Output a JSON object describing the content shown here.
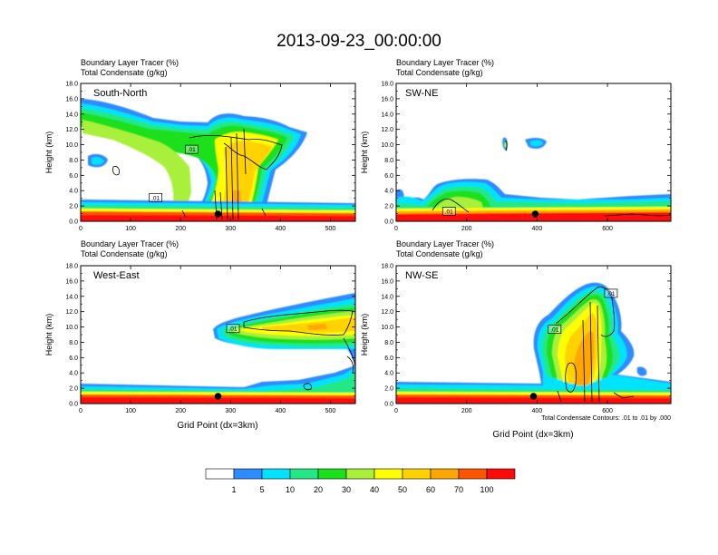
{
  "figure": {
    "title": "2013-09-23_00:00:00",
    "note": "Total Condensate Contours: .01 to .01 by .000"
  },
  "chart_data": [
    {
      "type": "heatmap",
      "panel_label": "South-North",
      "title_line1": "Boundary Layer Tracer   (%)",
      "title_line2": "Total Condensate   (g/kg)",
      "xlabel": "",
      "ylabel": "Height (km)",
      "xlim": [
        0,
        550
      ],
      "ylim": [
        0,
        18
      ],
      "xticks": [
        0,
        100,
        200,
        300,
        400,
        500
      ],
      "yticks": [
        0.0,
        2.0,
        4.0,
        6.0,
        8.0,
        10.0,
        12.0,
        14.0,
        16.0,
        18.0
      ],
      "marker_x": 275,
      "contour_labels": [
        {
          "x": 222,
          "y": 9.4,
          "text": ".01"
        },
        {
          "x": 150,
          "y": 3.1,
          "text": ".01"
        }
      ]
    },
    {
      "type": "heatmap",
      "panel_label": "SW-NE",
      "title_line1": "Boundary Layer Tracer   (%)",
      "title_line2": "Total Condensate   (g/kg)",
      "xlabel": "",
      "ylabel": "Height (km)",
      "xlim": [
        0,
        780
      ],
      "ylim": [
        0,
        18
      ],
      "xticks": [
        0,
        200,
        400,
        600
      ],
      "yticks": [
        0.0,
        2.0,
        4.0,
        6.0,
        8.0,
        10.0,
        12.0,
        14.0,
        16.0,
        18.0
      ],
      "marker_x": 395,
      "contour_labels": [
        {
          "x": 150,
          "y": 1.3,
          "text": ".01"
        }
      ]
    },
    {
      "type": "heatmap",
      "panel_label": "West-East",
      "title_line1": "Boundary Layer Tracer   (%)",
      "title_line2": "Total Condensate   (g/kg)",
      "xlabel": "Grid Point (dx=3km)",
      "ylabel": "Height (km)",
      "xlim": [
        0,
        550
      ],
      "ylim": [
        0,
        18
      ],
      "xticks": [
        0,
        100,
        200,
        300,
        400,
        500
      ],
      "yticks": [
        0.0,
        2.0,
        4.0,
        6.0,
        8.0,
        10.0,
        12.0,
        14.0,
        16.0,
        18.0
      ],
      "marker_x": 275,
      "contour_labels": [
        {
          "x": 305,
          "y": 9.8,
          "text": ".01"
        }
      ]
    },
    {
      "type": "heatmap",
      "panel_label": "NW-SE",
      "title_line1": "Boundary Layer Tracer   (%)",
      "title_line2": "Total Condensate   (g/kg)",
      "xlabel": "Grid Point (dx=3km)",
      "ylabel": "Height (km)",
      "xlim": [
        0,
        780
      ],
      "ylim": [
        0,
        18
      ],
      "xticks": [
        0,
        200,
        400,
        600
      ],
      "yticks": [
        0.0,
        2.0,
        4.0,
        6.0,
        8.0,
        10.0,
        12.0,
        14.0,
        16.0,
        18.0
      ],
      "marker_x": 390,
      "contour_labels": [
        {
          "x": 450,
          "y": 9.7,
          "text": ".01"
        },
        {
          "x": 610,
          "y": 14.4,
          "text": ".01"
        }
      ]
    }
  ],
  "colorbar": {
    "labels": [
      "1",
      "5",
      "10",
      "20",
      "30",
      "40",
      "50",
      "60",
      "70",
      "100"
    ],
    "colors": [
      "#ffffff",
      "#2e8cff",
      "#00e3ff",
      "#22e886",
      "#1ae01a",
      "#a8f03a",
      "#ffff00",
      "#ffd200",
      "#ffa600",
      "#ff5500",
      "#ff0a0a"
    ]
  }
}
